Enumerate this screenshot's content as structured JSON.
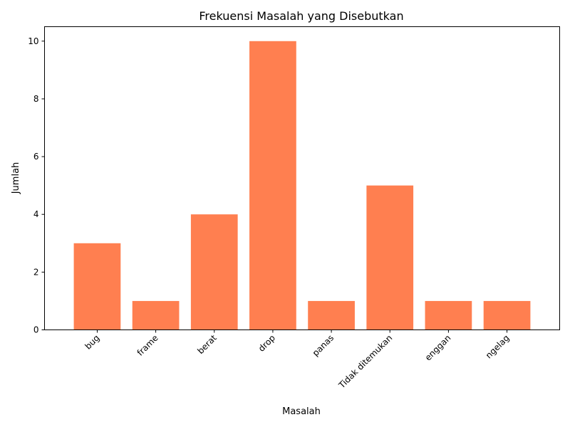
{
  "chart_data": {
    "type": "bar",
    "title": "Frekuensi Masalah yang Disebutkan",
    "xlabel": "Masalah",
    "ylabel": "Jumlah",
    "categories": [
      "bug",
      "frame",
      "berat",
      "drop",
      "panas",
      "Tidak ditemukan",
      "enggan",
      "ngelag"
    ],
    "values": [
      3,
      1,
      4,
      10,
      1,
      5,
      1,
      1
    ],
    "ylim": [
      0,
      10.5
    ],
    "yticks": [
      0,
      2,
      4,
      6,
      8,
      10
    ],
    "bar_color": "#ff7f50",
    "grid": false,
    "xtick_rotation": 45
  }
}
